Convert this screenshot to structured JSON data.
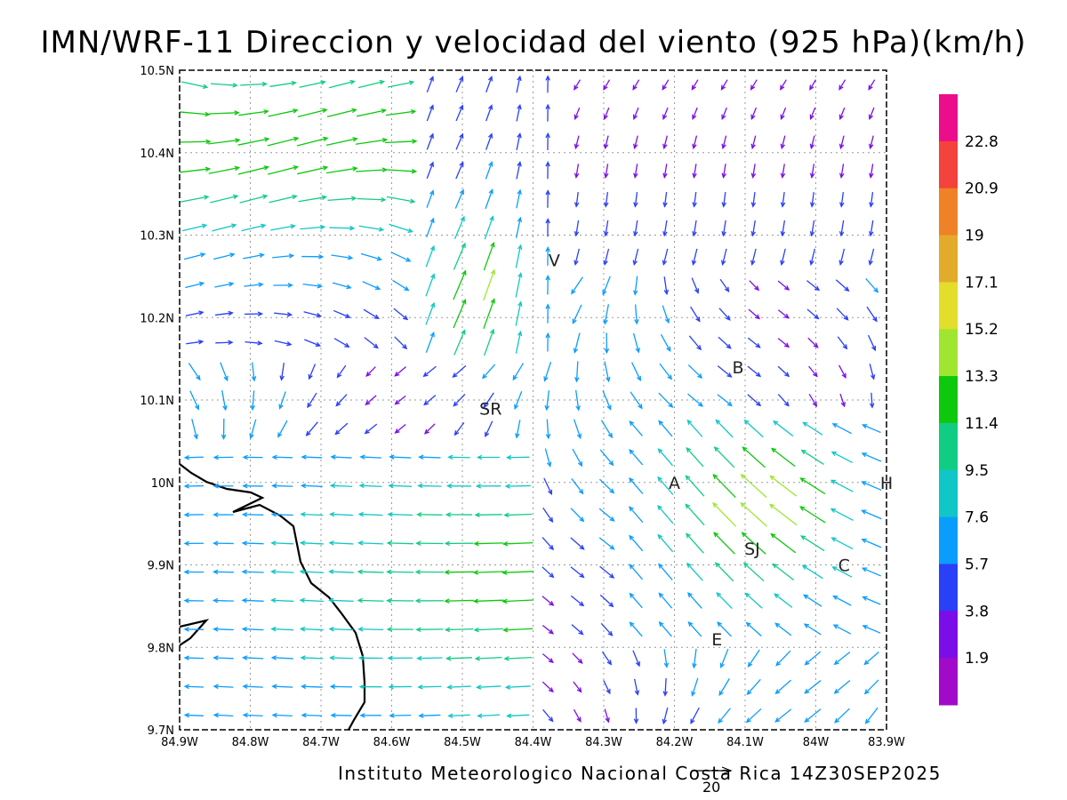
{
  "title": "IMN/WRF-11 Direccion y velocidad del viento (925 hPa)(km/h)",
  "footer": "Instituto Meteorologico Nacional Costa Rica 14Z30SEP2025",
  "reference_vector": {
    "value": "20"
  },
  "map": {
    "lon_labels": [
      "84.9W",
      "84.8W",
      "84.7W",
      "84.6W",
      "84.5W",
      "84.4W",
      "84.3W",
      "84.2W",
      "84.1W",
      "84W",
      "83.9W"
    ],
    "lat_labels": [
      "10.5N",
      "10.4N",
      "10.3N",
      "10.2N",
      "10.1N",
      "10N",
      "9.9N",
      "9.8N",
      "9.7N"
    ],
    "lon_range": [
      -84.9,
      -83.9
    ],
    "lat_range": [
      9.7,
      10.5
    ],
    "grid": "dotted",
    "places": [
      {
        "label": "V",
        "lon": -84.37,
        "lat": 10.27
      },
      {
        "label": "SR",
        "lon": -84.46,
        "lat": 10.09
      },
      {
        "label": "B",
        "lon": -84.11,
        "lat": 10.14
      },
      {
        "label": "A",
        "lon": -84.2,
        "lat": 10.0
      },
      {
        "label": "SJ",
        "lon": -84.09,
        "lat": 9.92
      },
      {
        "label": "C",
        "lon": -83.96,
        "lat": 9.9
      },
      {
        "label": "E",
        "lon": -84.14,
        "lat": 9.81
      },
      {
        "label": "H",
        "lon": -83.9,
        "lat": 10.0
      }
    ]
  },
  "colorbar": {
    "labels": [
      "22.8",
      "20.9",
      "19",
      "17.1",
      "15.2",
      "13.3",
      "11.4",
      "9.5",
      "7.6",
      "5.7",
      "3.8",
      "1.9"
    ],
    "colors": [
      "#ec0d8c",
      "#f4423c",
      "#ef8126",
      "#e3ab2a",
      "#e3dd2c",
      "#a0e630",
      "#0ec80e",
      "#11cd84",
      "#11c6c6",
      "#0b9dfe",
      "#2a3ff8",
      "#7b0ee8",
      "#a10ac9"
    ]
  }
}
